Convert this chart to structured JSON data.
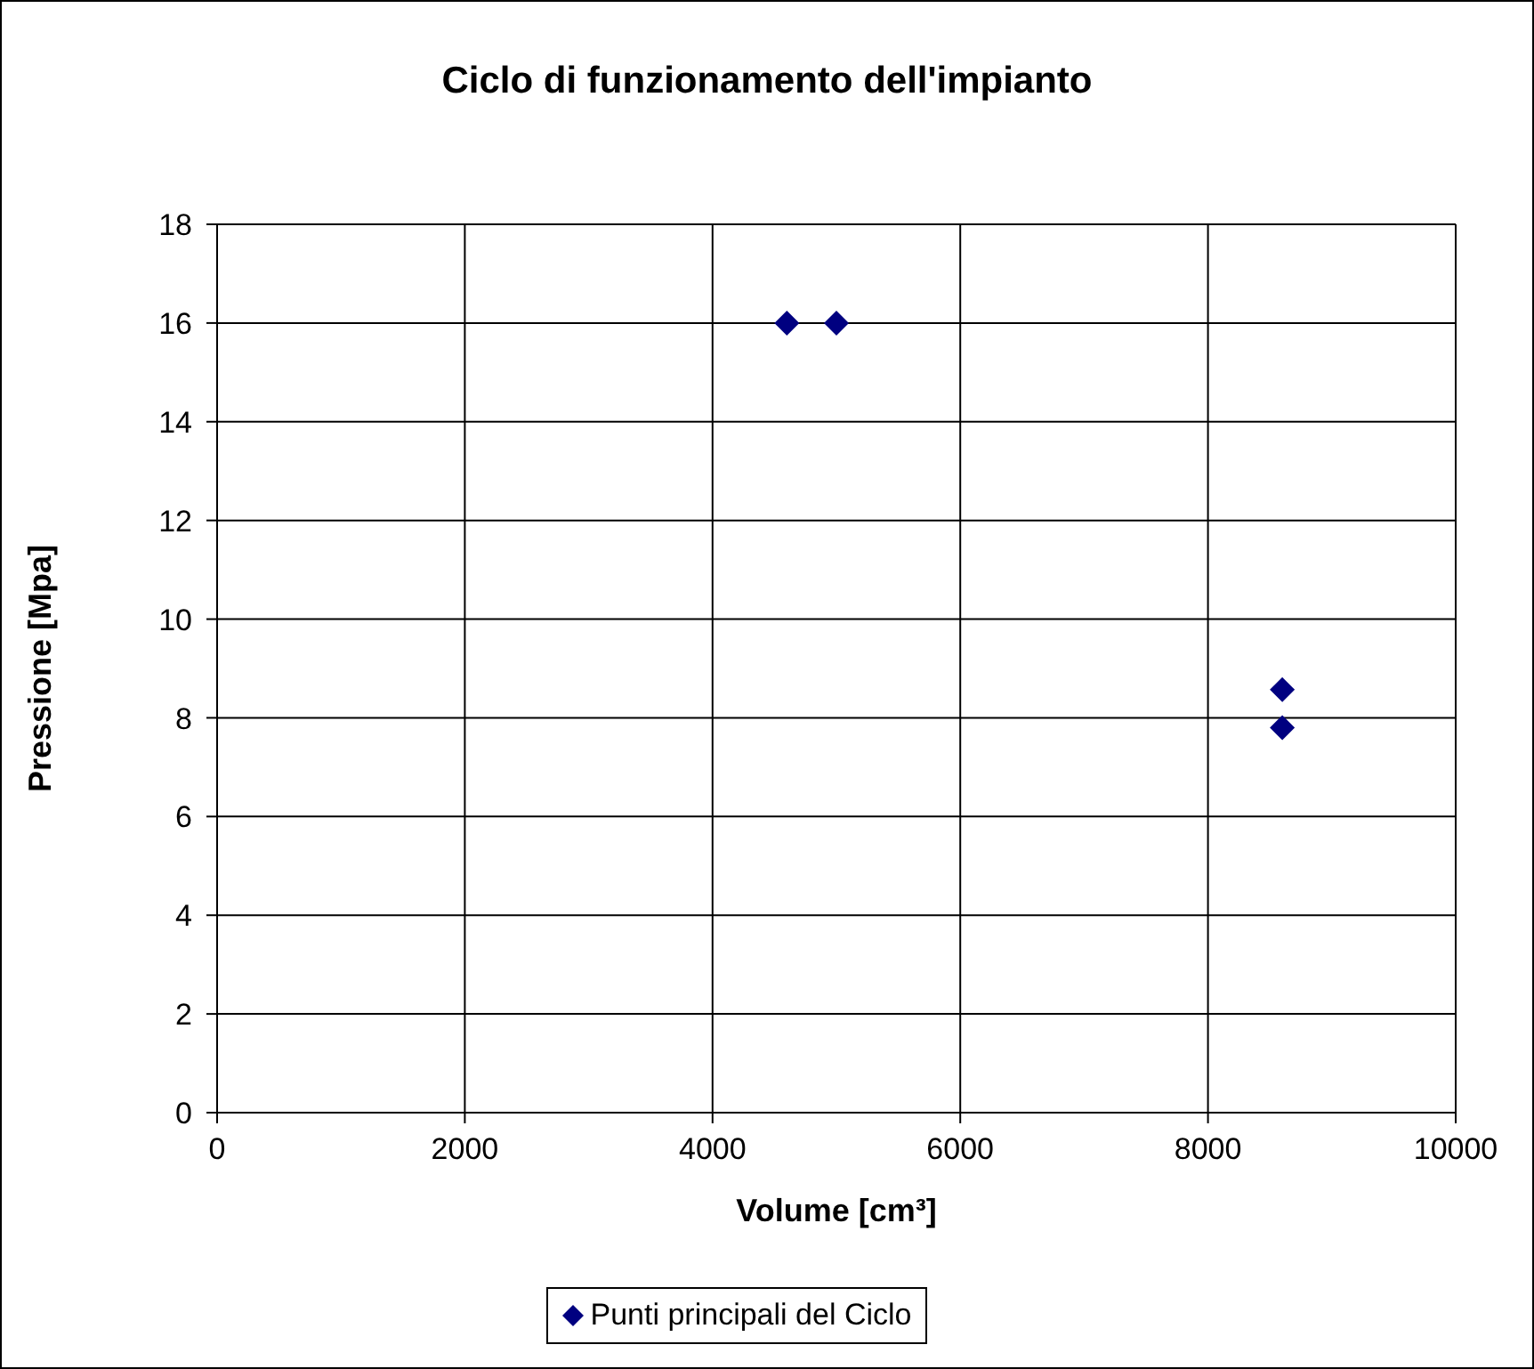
{
  "chart_data": {
    "type": "scatter",
    "title": "Ciclo di funzionamento dell'impianto",
    "xlabel": "Volume [cm³]",
    "ylabel": "Pressione [Mpa]",
    "x": [
      4600,
      5000,
      8600,
      8600
    ],
    "series": [
      {
        "name": "Punti principali del Ciclo",
        "color": "#000080",
        "values": [
          16,
          16,
          8.57,
          7.8
        ]
      }
    ],
    "xlim": [
      0,
      10000
    ],
    "xticks": [
      0,
      2000,
      4000,
      6000,
      8000,
      10000
    ],
    "ylim": [
      0,
      18
    ],
    "yticks": [
      0,
      2,
      4,
      6,
      8,
      10,
      12,
      14,
      16,
      18
    ],
    "grid": true,
    "legend": "bottom",
    "marker": "diamond"
  }
}
